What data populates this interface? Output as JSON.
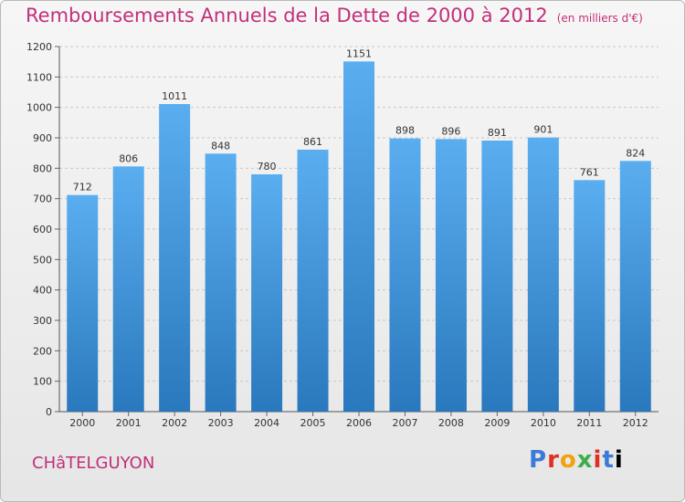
{
  "header": {
    "title": "Remboursements Annuels de la Dette de 2000 à 2012",
    "unit": "(en milliers d'€)"
  },
  "footer": {
    "commune": "CHâTELGUYON",
    "logo": "Proxiti"
  },
  "colors": {
    "title": "#c2307a",
    "bar_top": "#5aaef0",
    "bar_bottom": "#2a78bd"
  },
  "chart_data": {
    "type": "bar",
    "title": "Remboursements Annuels de la Dette de 2000 à 2012",
    "xlabel": "",
    "ylabel": "",
    "categories": [
      "2000",
      "2001",
      "2002",
      "2003",
      "2004",
      "2005",
      "2006",
      "2007",
      "2008",
      "2009",
      "2010",
      "2011",
      "2012"
    ],
    "values": [
      712,
      806,
      1011,
      848,
      780,
      861,
      1151,
      898,
      896,
      891,
      901,
      761,
      824
    ],
    "ylim": [
      0,
      1200
    ],
    "yticks": [
      0,
      100,
      200,
      300,
      400,
      500,
      600,
      700,
      800,
      900,
      1000,
      1100,
      1200
    ],
    "grid": true,
    "data_labels": true
  }
}
